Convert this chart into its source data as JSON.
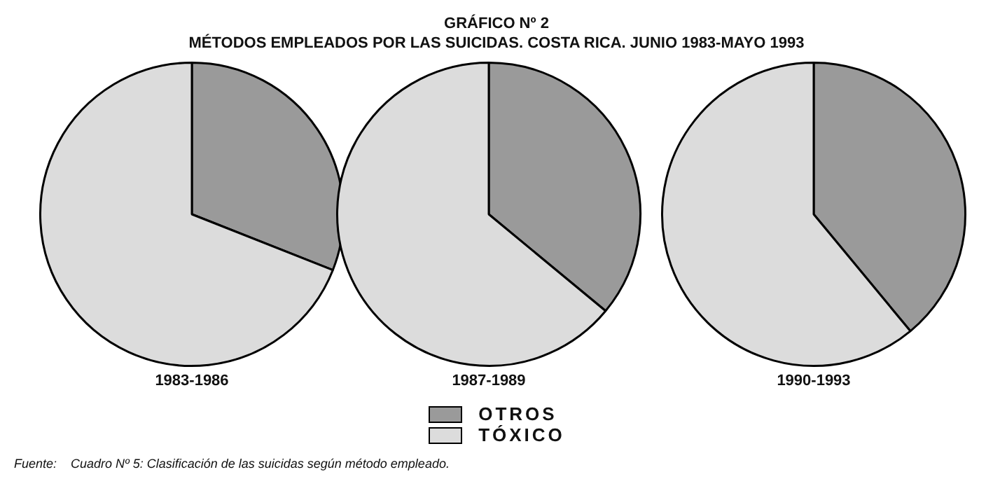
{
  "chart_data": {
    "type": "pie",
    "title": "GRÁFICO Nº 2",
    "subtitle": "MÉTODOS EMPLEADOS POR LAS SUICIDAS. COSTA RICA. JUNIO 1983-MAYO 1993",
    "categories": [
      "OTROS",
      "TÓXICO"
    ],
    "colors": [
      "#9a9a9a",
      "#dcdcdc"
    ],
    "legend": "bottom",
    "annotations": [
      "Fuente:    Cuadro Nº 5: Clasificación de las suicidas según método empleado."
    ],
    "series": [
      {
        "name": "1983-1986",
        "values": [
          31,
          69
        ]
      },
      {
        "name": "1987-1989",
        "values": [
          36,
          64
        ]
      },
      {
        "name": "1990-1993",
        "values": [
          39,
          61
        ]
      }
    ]
  }
}
